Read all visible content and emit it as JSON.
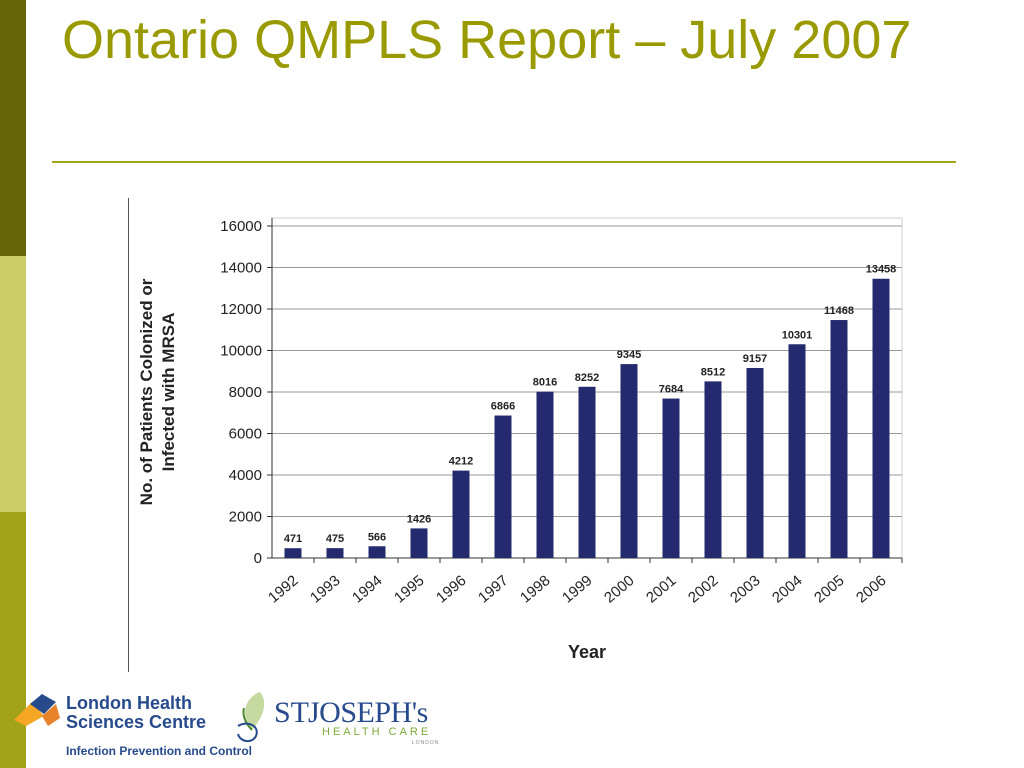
{
  "slide": {
    "title": "Ontario QMPLS Report – July 2007"
  },
  "chart_data": {
    "type": "bar",
    "categories": [
      "1992",
      "1993",
      "1994",
      "1995",
      "1996",
      "1997",
      "1998",
      "1999",
      "2000",
      "2001",
      "2002",
      "2003",
      "2004",
      "2005",
      "2006"
    ],
    "values": [
      471,
      475,
      566,
      1426,
      4212,
      6866,
      8016,
      8252,
      9345,
      7684,
      8512,
      9157,
      10301,
      11468,
      13458
    ],
    "xlabel": "Year",
    "ylabel": "No. of Patients Colonized or Infected with MRSA",
    "ylim": [
      0,
      16000
    ],
    "yticks": [
      0,
      2000,
      4000,
      6000,
      8000,
      10000,
      12000,
      14000,
      16000
    ],
    "grid": true,
    "bar_color": "#232a6e"
  },
  "logos": {
    "lhsc": {
      "name": "London Health\nSciences Centre",
      "subtitle": "Infection Prevention and Control"
    },
    "stjoseph": {
      "st": "ST",
      "name": "JOSEPH's",
      "tagline": "HEALTH CARE",
      "city": "LONDON"
    }
  }
}
